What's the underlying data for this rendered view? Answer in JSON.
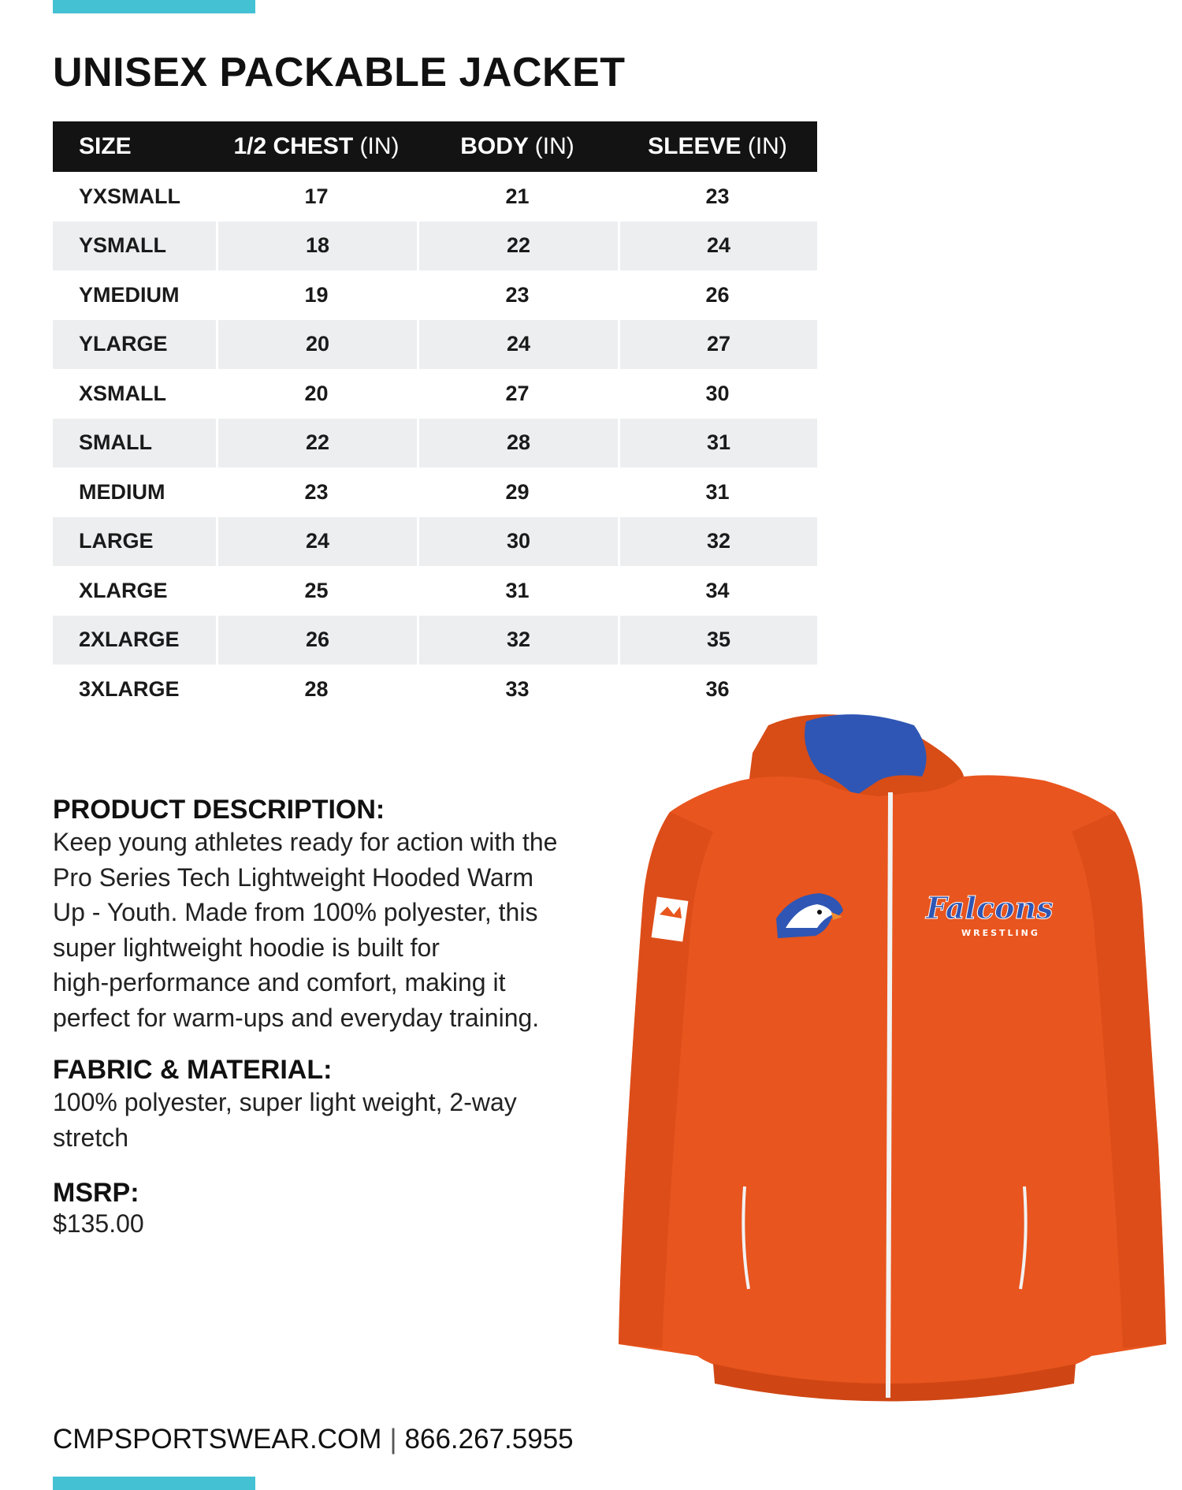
{
  "title": "UNISEX PACKABLE JACKET",
  "table": {
    "headers": [
      {
        "label": "SIZE",
        "unit": ""
      },
      {
        "label": "1/2 CHEST",
        "unit": "(IN)"
      },
      {
        "label": "BODY",
        "unit": "(IN)"
      },
      {
        "label": "SLEEVE",
        "unit": "(IN)"
      }
    ],
    "rows": [
      [
        "YXSMALL",
        "17",
        "21",
        "23"
      ],
      [
        "YSMALL",
        "18",
        "22",
        "24"
      ],
      [
        "YMEDIUM",
        "19",
        "23",
        "26"
      ],
      [
        "YLARGE",
        "20",
        "24",
        "27"
      ],
      [
        "XSMALL",
        "20",
        "27",
        "30"
      ],
      [
        "SMALL",
        "22",
        "28",
        "31"
      ],
      [
        "MEDIUM",
        "23",
        "29",
        "31"
      ],
      [
        "LARGE",
        "24",
        "30",
        "32"
      ],
      [
        "XLARGE",
        "25",
        "31",
        "34"
      ],
      [
        "2XLARGE",
        "26",
        "32",
        "35"
      ],
      [
        "3XLARGE",
        "28",
        "33",
        "36"
      ]
    ]
  },
  "description": {
    "heading": "PRODUCT DESCRIPTION:",
    "lines": [
      "Keep young athletes ready for action with the",
      "Pro Series Tech Lightweight Hooded Warm",
      "Up - Youth. Made from 100% polyester, this",
      "super lightweight hoodie is built for",
      "high-performance and comfort, making it",
      "perfect for warm-ups and everyday training."
    ]
  },
  "fabric": {
    "heading": "FABRIC & MATERIAL:",
    "lines": [
      "100% polyester, super light weight, 2-way",
      "stretch"
    ]
  },
  "msrp": {
    "heading": "MSRP:",
    "value": "$135.00"
  },
  "footer": {
    "website": "CMPSPORTSWEAR.COM",
    "separator": "|",
    "phone": "866.267.5955"
  },
  "jacket_image": {
    "logo_text": "Falcons",
    "logo_subtext": "WRESTLING",
    "body_color": "#e8551e",
    "hood_lining_color": "#2f56b4",
    "zipper_color": "#f2f2f2"
  },
  "colors": {
    "accent": "#45c1d4",
    "header_bg": "#131313",
    "row_alt_bg": "#eceef0"
  }
}
